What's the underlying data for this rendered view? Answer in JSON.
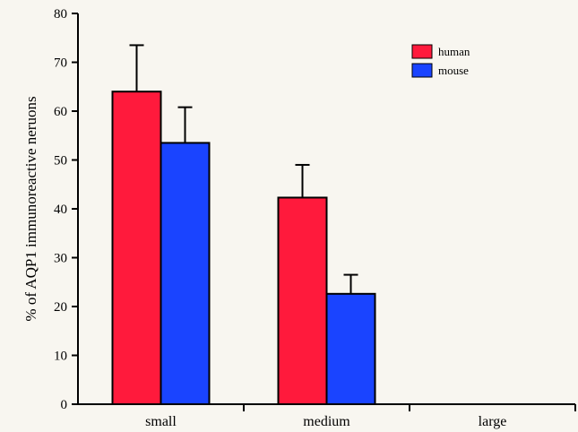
{
  "chart_data": {
    "type": "bar",
    "categories": [
      "small",
      "medium",
      "large"
    ],
    "series": [
      {
        "name": "human",
        "color": "#ff1a3c",
        "values": [
          64,
          42.3,
          0
        ],
        "errors": [
          9.5,
          6.7,
          0
        ]
      },
      {
        "name": "mouse",
        "color": "#1a44ff",
        "values": [
          53.5,
          22.6,
          0
        ],
        "errors": [
          7.3,
          3.9,
          0
        ]
      }
    ],
    "xlabel": "",
    "ylabel": "% of AQP1 immunoreactive neruons",
    "ylim": [
      0,
      80
    ],
    "yticks": [
      0,
      10,
      20,
      30,
      40,
      50,
      60,
      70,
      80
    ],
    "legend_position": "top-right",
    "grid": false,
    "error_bars": true
  }
}
